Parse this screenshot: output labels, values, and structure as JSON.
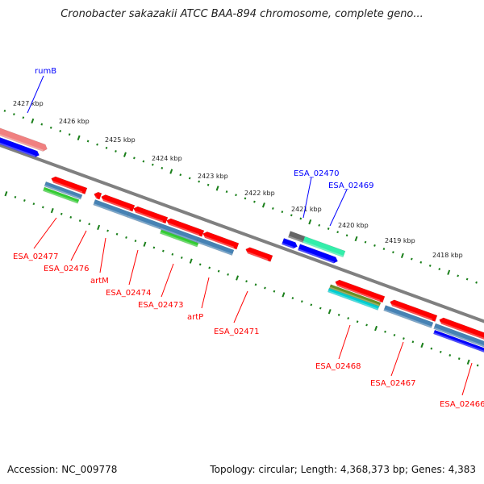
{
  "title": "Cronobacter sakazakii ATCC BAA-894 chromosome, complete geno...",
  "ticks": [
    "2427 kbp",
    "2426 kbp",
    "2425 kbp",
    "2424 kbp",
    "2423 kbp",
    "2422 kbp",
    "2421 kbp",
    "2420 kbp",
    "2419 kbp",
    "2418 kbp"
  ],
  "genes_forward": [
    "rumB",
    "ESA_02470",
    "ESA_02469"
  ],
  "genes_reverse": [
    "ESA_02477",
    "ESA_02476",
    "artM",
    "ESA_02474",
    "ESA_02473",
    "artP",
    "ESA_02471",
    "ESA_02468",
    "ESA_02467",
    "ESA_02466"
  ],
  "colors": {
    "forward_label": "#0000ff",
    "reverse_label": "#ff0000",
    "backbone": "#808080",
    "ticks": "#1a7f1a"
  },
  "footer": {
    "accession": "Accession: NC_009778",
    "info": "Topology: circular; Length: 4,368,373 bp; Genes: 4,383"
  }
}
